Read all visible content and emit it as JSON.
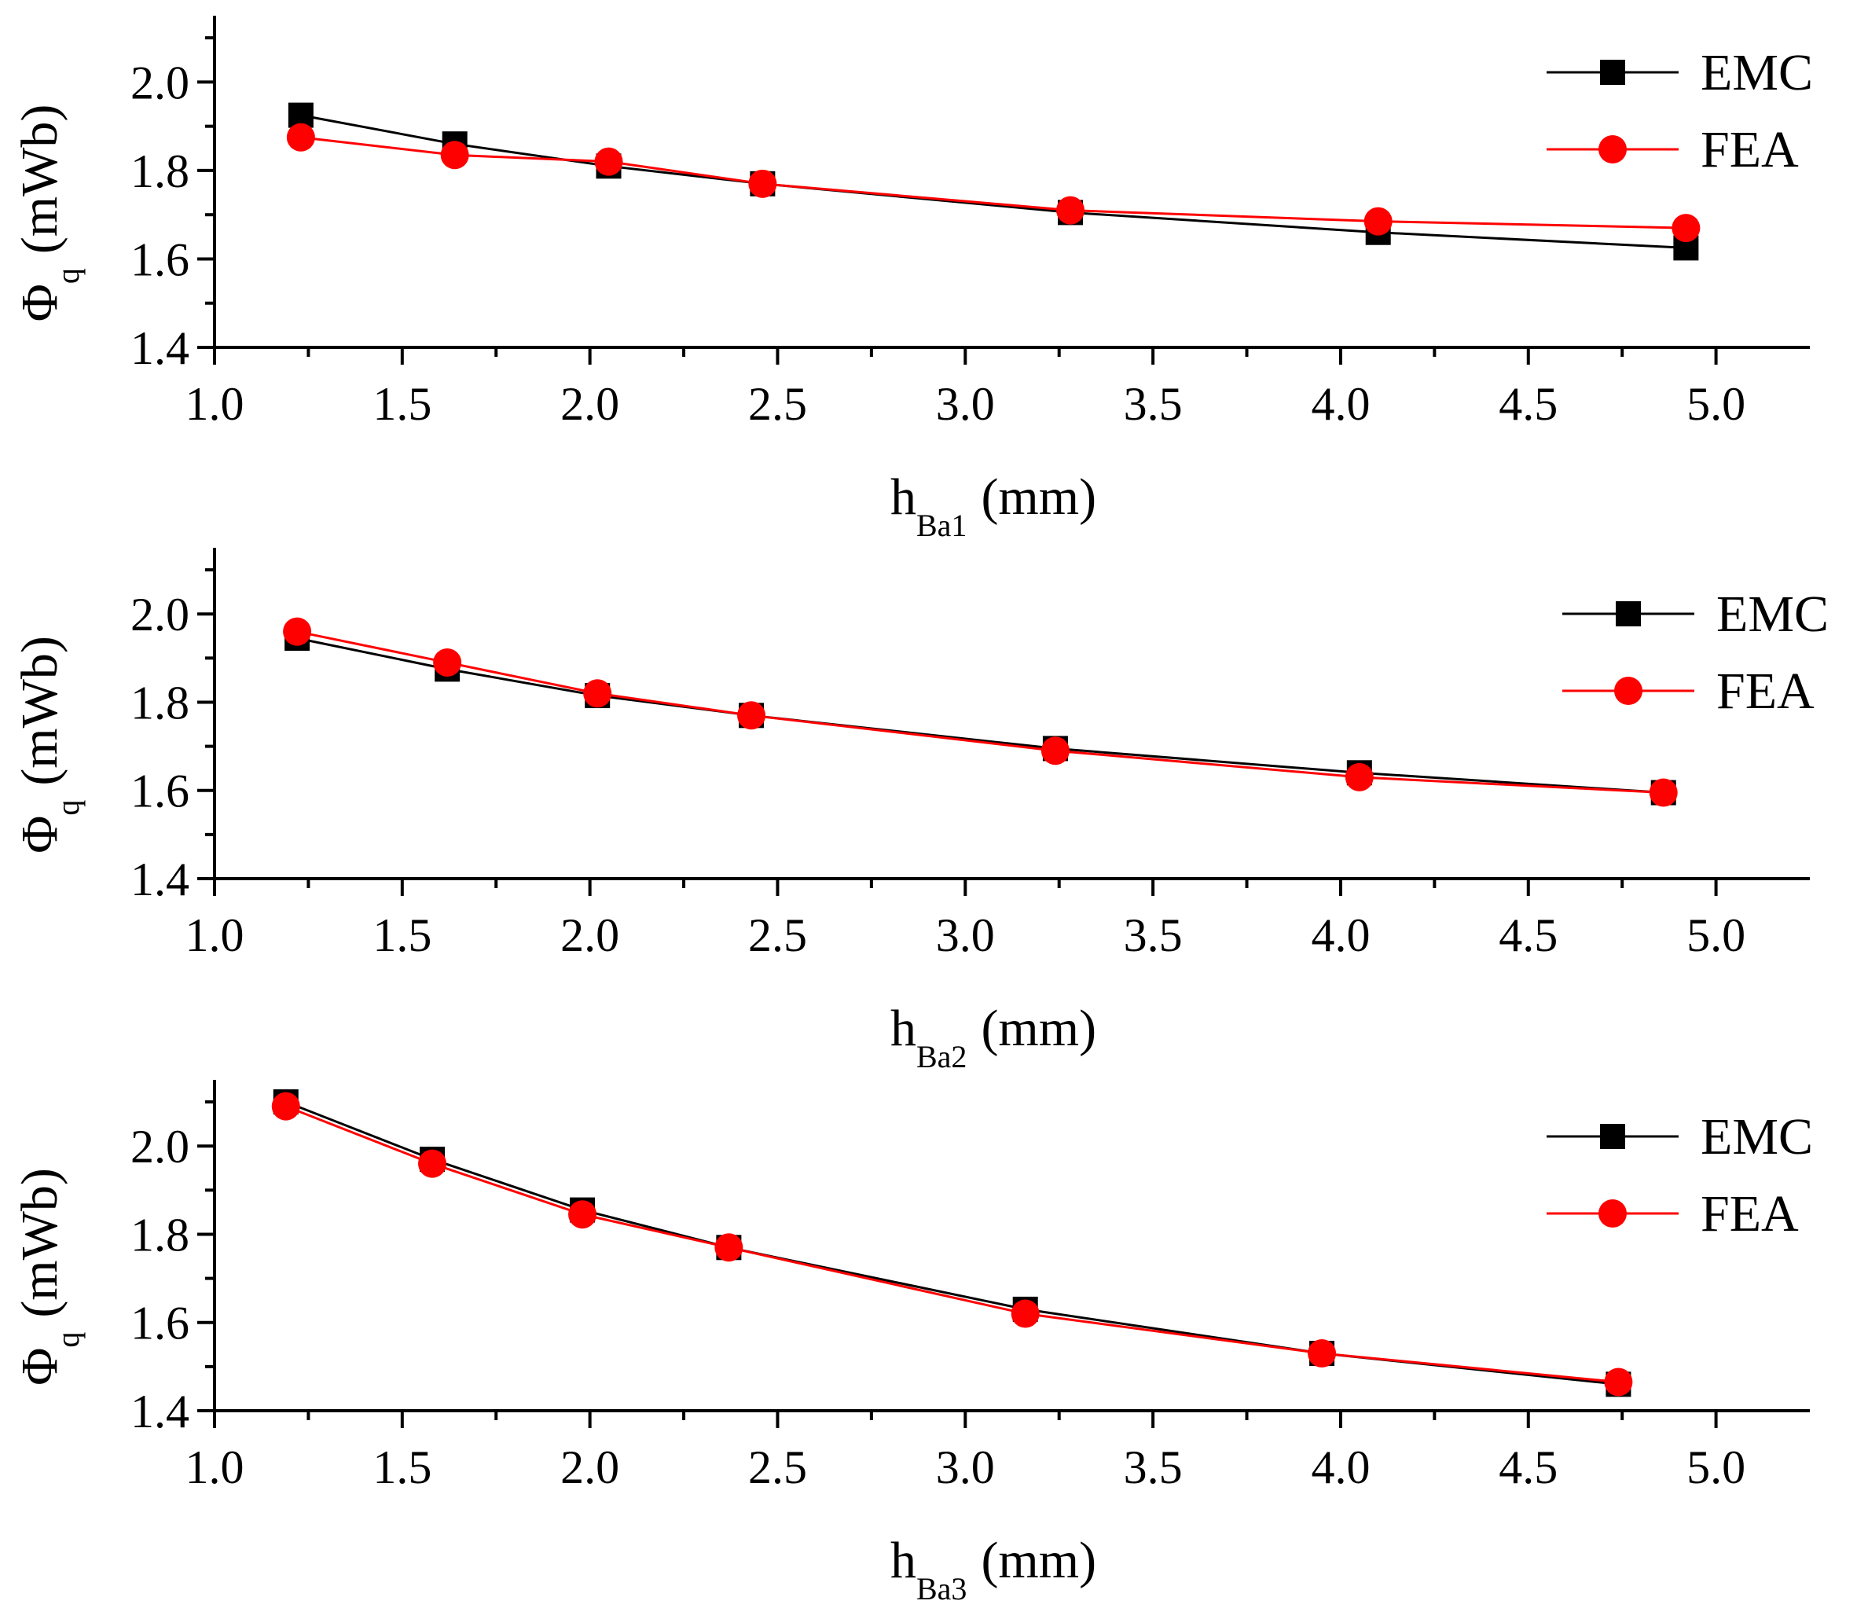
{
  "chart_data": [
    {
      "type": "line",
      "id": "panel1",
      "xlabel": {
        "main": "h",
        "sub": "Ba1",
        "unit": "(mm)"
      },
      "ylabel": {
        "main": "Φ",
        "sub": "q",
        "unit": "(mWb)"
      },
      "xlim": [
        1.0,
        5.25
      ],
      "ylim": [
        1.4,
        2.15
      ],
      "xticks": [
        "1.0",
        "1.5",
        "2.0",
        "2.5",
        "3.0",
        "3.5",
        "4.0",
        "4.5",
        "5.0"
      ],
      "yticks": [
        "1.4",
        "1.6",
        "1.8",
        "2.0"
      ],
      "x": [
        1.23,
        1.64,
        2.05,
        2.46,
        3.28,
        4.1,
        4.92
      ],
      "series": [
        {
          "name": "EMC",
          "color": "#000000",
          "marker": "square",
          "values": [
            1.925,
            1.86,
            1.81,
            1.77,
            1.705,
            1.66,
            1.625
          ]
        },
        {
          "name": "FEA",
          "color": "#ff0000",
          "marker": "circle",
          "values": [
            1.875,
            1.835,
            1.82,
            1.77,
            1.71,
            1.685,
            1.67
          ]
        }
      ],
      "legend": "top-right"
    },
    {
      "type": "line",
      "id": "panel2",
      "xlabel": {
        "main": "h",
        "sub": "Ba2",
        "unit": "(mm)"
      },
      "ylabel": {
        "main": "Φ",
        "sub": "q",
        "unit": "(mWb)"
      },
      "xlim": [
        1.0,
        5.25
      ],
      "ylim": [
        1.4,
        2.15
      ],
      "xticks": [
        "1.0",
        "1.5",
        "2.0",
        "2.5",
        "3.0",
        "3.5",
        "4.0",
        "4.5",
        "5.0"
      ],
      "yticks": [
        "1.4",
        "1.6",
        "1.8",
        "2.0"
      ],
      "x": [
        1.22,
        1.62,
        2.02,
        2.43,
        3.24,
        4.05,
        4.86
      ],
      "series": [
        {
          "name": "EMC",
          "color": "#000000",
          "marker": "square",
          "values": [
            1.945,
            1.875,
            1.815,
            1.77,
            1.695,
            1.64,
            1.595
          ]
        },
        {
          "name": "FEA",
          "color": "#ff0000",
          "marker": "circle",
          "values": [
            1.96,
            1.89,
            1.82,
            1.77,
            1.69,
            1.63,
            1.595
          ]
        }
      ],
      "legend": "top-right"
    },
    {
      "type": "line",
      "id": "panel3",
      "xlabel": {
        "main": "h",
        "sub": "Ba3",
        "unit": "(mm)"
      },
      "ylabel": {
        "main": "Φ",
        "sub": "q",
        "unit": "(mWb)"
      },
      "xlim": [
        1.0,
        5.25
      ],
      "ylim": [
        1.4,
        2.15
      ],
      "xticks": [
        "1.0",
        "1.5",
        "2.0",
        "2.5",
        "3.0",
        "3.5",
        "4.0",
        "4.5",
        "5.0"
      ],
      "yticks": [
        "1.4",
        "1.6",
        "1.8",
        "2.0"
      ],
      "x": [
        1.19,
        1.58,
        1.98,
        2.37,
        3.16,
        3.95,
        4.74
      ],
      "series": [
        {
          "name": "EMC",
          "color": "#000000",
          "marker": "square",
          "values": [
            2.1,
            1.97,
            1.855,
            1.77,
            1.63,
            1.53,
            1.46
          ]
        },
        {
          "name": "FEA",
          "color": "#ff0000",
          "marker": "circle",
          "values": [
            2.09,
            1.96,
            1.845,
            1.77,
            1.62,
            1.53,
            1.465
          ]
        }
      ],
      "legend": "top-right"
    }
  ]
}
